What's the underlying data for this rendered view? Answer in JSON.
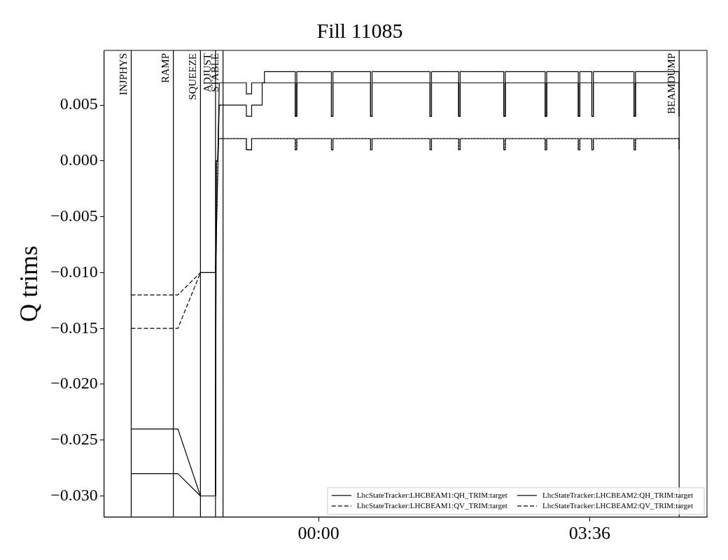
{
  "chart_data": {
    "type": "line",
    "title": "Fill 11085",
    "ylabel": "Q trims",
    "xlim": [
      -2.85,
      5.16
    ],
    "xticks": [
      {
        "value": 0,
        "label": "00:00"
      },
      {
        "value": 3.6,
        "label": "03:36"
      }
    ],
    "ylim": [
      -0.0319,
      0.0099
    ],
    "yticks": [
      {
        "value": -0.03,
        "label": "−0.030"
      },
      {
        "value": -0.025,
        "label": "−0.025"
      },
      {
        "value": -0.02,
        "label": "−0.020"
      },
      {
        "value": -0.015,
        "label": "−0.015"
      },
      {
        "value": -0.01,
        "label": "−0.010"
      },
      {
        "value": -0.005,
        "label": "−0.005"
      },
      {
        "value": 0,
        "label": "0.000"
      },
      {
        "value": 0.005,
        "label": "0.005"
      }
    ],
    "grid": false,
    "legend": "bottom right",
    "marker": "none",
    "series": [
      {
        "name": "LhcStateTracker:LHCBEAM1:QH_TRIM:target",
        "color": "#000000",
        "line_style": "solid",
        "x": [
          -2.49,
          -1.87,
          -1.57,
          -1.37,
          -1.36,
          -1.34,
          -1.32,
          -0.96,
          -0.96,
          -0.89,
          -0.89,
          -0.31,
          -0.31,
          -0.29,
          -0.29,
          0.17,
          0.17,
          0.19,
          0.19,
          0.69,
          0.69,
          0.71,
          0.71,
          1.48,
          1.48,
          1.5,
          1.5,
          1.86,
          1.86,
          1.88,
          1.88,
          2.46,
          2.46,
          2.48,
          2.48,
          3.01,
          3.01,
          3.03,
          3.03,
          3.45,
          3.45,
          3.47,
          3.47,
          3.63,
          3.63,
          3.65,
          3.65,
          4.19,
          4.19,
          4.21,
          4.21,
          4.79,
          4.79
        ],
        "values": [
          -0.024,
          -0.024,
          -0.03,
          -0.03,
          0,
          0,
          0.007,
          0.007,
          0.006,
          0.006,
          0.007,
          0.007,
          0.004,
          0.004,
          0.007,
          0.007,
          0.004,
          0.004,
          0.007,
          0.007,
          0.004,
          0.004,
          0.007,
          0.007,
          0.004,
          0.004,
          0.007,
          0.007,
          0.004,
          0.004,
          0.007,
          0.007,
          0.004,
          0.004,
          0.007,
          0.007,
          0.004,
          0.004,
          0.007,
          0.007,
          0.004,
          0.004,
          0.007,
          0.007,
          0.004,
          0.004,
          0.007,
          0.007,
          0.004,
          0.004,
          0.007,
          0.007,
          0.004
        ]
      },
      {
        "name": "LhcStateTracker:LHCBEAM1:QV_TRIM:target",
        "color": "#000000",
        "line_style": "dashed",
        "x": [
          -2.49,
          -1.87,
          -1.57,
          -1.37,
          -1.33,
          -0.96,
          -0.96,
          -0.89,
          -0.89,
          -0.31,
          -0.31,
          -0.29,
          -0.29,
          0.17,
          0.17,
          0.19,
          0.19,
          0.69,
          0.69,
          0.71,
          0.71,
          1.48,
          1.48,
          1.5,
          1.5,
          1.86,
          1.86,
          1.88,
          1.88,
          2.46,
          2.46,
          2.48,
          2.48,
          3.01,
          3.01,
          3.03,
          3.03,
          3.45,
          3.45,
          3.47,
          3.47,
          3.63,
          3.63,
          3.65,
          3.65,
          4.19,
          4.19,
          4.21,
          4.21,
          4.79,
          4.79
        ],
        "values": [
          -0.012,
          -0.012,
          -0.01,
          -0.01,
          0.002,
          0.002,
          0.001,
          0.001,
          0.002,
          0.002,
          0.001,
          0.001,
          0.002,
          0.002,
          0.001,
          0.001,
          0.002,
          0.002,
          0.001,
          0.001,
          0.002,
          0.002,
          0.001,
          0.001,
          0.002,
          0.002,
          0.001,
          0.001,
          0.002,
          0.002,
          0.001,
          0.001,
          0.002,
          0.002,
          0.001,
          0.001,
          0.002,
          0.002,
          0.001,
          0.001,
          0.002,
          0.002,
          0.001,
          0.001,
          0.002,
          0.002,
          0.001,
          0.001,
          0.002,
          0.002,
          0.001
        ]
      },
      {
        "name": "LhcStateTracker:LHCBEAM2:QH_TRIM:target",
        "color": "#000000",
        "line_style": "solid",
        "x": [
          -2.49,
          -1.87,
          -1.57,
          -1.37,
          -1.36,
          -1.34,
          -1.32,
          -0.96,
          -0.96,
          -0.89,
          -0.89,
          -0.75,
          -0.75,
          -0.72,
          -0.72,
          -0.31,
          -0.31,
          -0.29,
          -0.29,
          0.17,
          0.17,
          0.19,
          0.19,
          0.69,
          0.69,
          0.71,
          0.71,
          1.48,
          1.48,
          1.5,
          1.5,
          1.86,
          1.86,
          1.88,
          1.88,
          2.46,
          2.46,
          2.48,
          2.48,
          3.01,
          3.01,
          3.03,
          3.03,
          3.45,
          3.45,
          3.47,
          3.47,
          3.63,
          3.63,
          3.65,
          3.65,
          4.19,
          4.19,
          4.21,
          4.21,
          4.79,
          4.79
        ],
        "values": [
          -0.028,
          -0.028,
          -0.03,
          -0.03,
          0,
          0,
          0.005,
          0.005,
          0.004,
          0.004,
          0.005,
          0.005,
          0.007,
          0.007,
          0.008,
          0.008,
          0.004,
          0.004,
          0.008,
          0.008,
          0.004,
          0.004,
          0.008,
          0.008,
          0.004,
          0.004,
          0.008,
          0.008,
          0.004,
          0.004,
          0.008,
          0.008,
          0.004,
          0.004,
          0.008,
          0.008,
          0.004,
          0.004,
          0.008,
          0.008,
          0.004,
          0.004,
          0.008,
          0.008,
          0.004,
          0.004,
          0.008,
          0.008,
          0.004,
          0.004,
          0.008,
          0.008,
          0.004,
          0.004,
          0.008,
          0.008,
          0.004
        ]
      },
      {
        "name": "LhcStateTracker:LHCBEAM2:QV_TRIM:target",
        "color": "#000000",
        "line_style": "dashed",
        "x": [
          -2.49,
          -1.87,
          -1.57,
          -1.37,
          -1.33,
          -0.96,
          -0.96,
          -0.89,
          -0.89,
          -0.31,
          -0.31,
          -0.29,
          -0.29,
          0.17,
          0.17,
          0.19,
          0.19,
          0.69,
          0.69,
          0.71,
          0.71,
          1.48,
          1.48,
          1.5,
          1.5,
          1.86,
          1.86,
          1.88,
          1.88,
          2.46,
          2.46,
          2.48,
          2.48,
          3.01,
          3.01,
          3.03,
          3.03,
          3.45,
          3.45,
          3.47,
          3.47,
          3.63,
          3.63,
          3.65,
          3.65,
          4.19,
          4.19,
          4.21,
          4.21,
          4.79,
          4.79
        ],
        "values": [
          -0.015,
          -0.015,
          -0.01,
          -0.01,
          0.002,
          0.002,
          0.001,
          0.001,
          0.002,
          0.002,
          0.001,
          0.001,
          0.002,
          0.002,
          0.001,
          0.001,
          0.002,
          0.002,
          0.001,
          0.001,
          0.002,
          0.002,
          0.001,
          0.001,
          0.002,
          0.002,
          0.001,
          0.001,
          0.002,
          0.002,
          0.001,
          0.001,
          0.002,
          0.002,
          0.001,
          0.001,
          0.002,
          0.002,
          0.001,
          0.001,
          0.002,
          0.002,
          0.001,
          0.001,
          0.002,
          0.002,
          0.001,
          0.001,
          0.002,
          0.002,
          0.001
        ]
      }
    ],
    "ref_lines": [
      {
        "axis": "x",
        "value": -2.49,
        "label": "INJPHYS",
        "color": "#000000"
      },
      {
        "axis": "x",
        "value": -1.93,
        "label": "RAMP",
        "color": "#000000"
      },
      {
        "axis": "x",
        "value": -1.57,
        "label": "SQUEEZE",
        "color": "#000000"
      },
      {
        "axis": "x",
        "value": -1.37,
        "label": "ADJUST",
        "color": "#000000"
      },
      {
        "axis": "x",
        "value": -1.27,
        "label": "STABLE",
        "color": "#000000"
      },
      {
        "axis": "x",
        "value": 4.79,
        "label": "BEAMDUMP",
        "color": "#000000"
      }
    ]
  }
}
